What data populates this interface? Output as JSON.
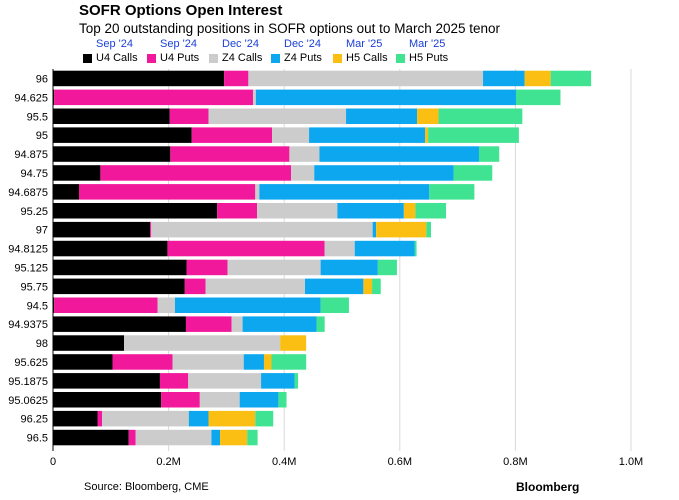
{
  "chart_data": {
    "type": "bar",
    "orientation": "horizontal",
    "stacked": true,
    "title": "SOFR Options Open Interest",
    "subtitle": "Top 20 outstanding positions in SOFR options out to March 2025 tenor",
    "xlim": [
      0,
      1000000
    ],
    "xticks": [
      0,
      200000,
      400000,
      600000,
      800000,
      1000000
    ],
    "xtick_labels": [
      "0",
      "0.2M",
      "0.4M",
      "0.6M",
      "0.8M",
      "1.0M"
    ],
    "grid": "vertical",
    "legend_placement": "top",
    "categories": [
      "96",
      "94.625",
      "95.5",
      "95",
      "94.875",
      "94.75",
      "94.6875",
      "95.25",
      "97",
      "94.8125",
      "95.125",
      "95.75",
      "94.5",
      "94.9375",
      "98",
      "95.625",
      "95.1875",
      "95.0625",
      "96.25",
      "96.5"
    ],
    "series": [
      {
        "name": "U4 Calls",
        "month": "Sep '24",
        "color": "#000000",
        "values": [
          296000,
          2000,
          202000,
          240000,
          203000,
          82000,
          45000,
          284000,
          168000,
          198000,
          231000,
          228000,
          2000,
          230000,
          123000,
          103000,
          185000,
          187000,
          77000,
          131000
        ]
      },
      {
        "name": "U4 Puts",
        "month": "Sep '24",
        "color": "#f2189b",
        "values": [
          42000,
          344000,
          67000,
          139000,
          206000,
          330000,
          305000,
          69000,
          2000,
          272000,
          71000,
          36000,
          179000,
          79000,
          0,
          104000,
          49000,
          67000,
          8000,
          12000
        ]
      },
      {
        "name": "Z4 Calls",
        "month": "Dec '24",
        "color": "#cccccc",
        "values": [
          406000,
          5000,
          238000,
          64000,
          52000,
          40000,
          7000,
          139000,
          383000,
          52000,
          161000,
          172000,
          30000,
          19000,
          270000,
          123000,
          126000,
          69000,
          150000,
          131000
        ]
      },
      {
        "name": "Z4 Puts",
        "month": "Dec '24",
        "color": "#0ca7ef",
        "values": [
          72000,
          450000,
          123000,
          201000,
          276000,
          241000,
          294000,
          115000,
          6000,
          104000,
          99000,
          101000,
          252000,
          128000,
          0,
          35000,
          58000,
          67000,
          34000,
          15000
        ]
      },
      {
        "name": "H5 Calls",
        "month": "Mar '25",
        "color": "#fbbf14",
        "values": [
          45000,
          0,
          37000,
          5000,
          0,
          0,
          0,
          20000,
          87000,
          0,
          0,
          15000,
          0,
          0,
          45000,
          13000,
          0,
          0,
          81000,
          47000
        ]
      },
      {
        "name": "H5 Puts",
        "month": "Mar '25",
        "color": "#3fe391",
        "values": [
          70000,
          77000,
          145000,
          157000,
          35000,
          67000,
          78000,
          53000,
          8000,
          3000,
          33000,
          15000,
          49000,
          14000,
          0,
          60000,
          6000,
          14000,
          31000,
          18000
        ]
      }
    ]
  },
  "footer": {
    "source": "Source: Bloomberg, CME",
    "brand": "Bloomberg"
  }
}
